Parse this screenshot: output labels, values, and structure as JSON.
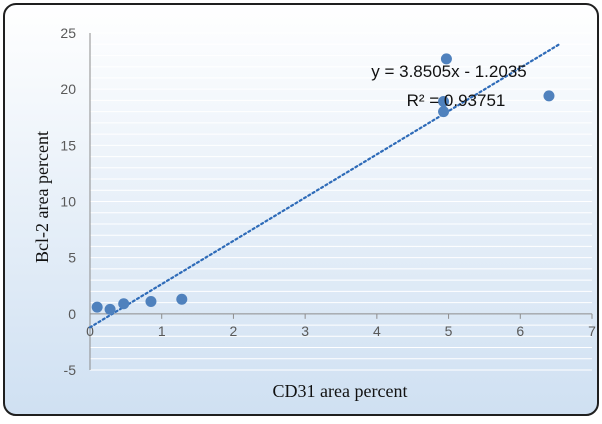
{
  "chart_data": {
    "type": "scatter",
    "xlabel": "CD31 area percent",
    "ylabel": "Bcl-2 area percent",
    "xlim": [
      0,
      7
    ],
    "ylim": [
      -5,
      25
    ],
    "x_ticks": [
      "0",
      "1",
      "2",
      "3",
      "4",
      "5",
      "6",
      "7"
    ],
    "y_ticks": [
      "-5",
      "0",
      "5",
      "10",
      "15",
      "20",
      "25"
    ],
    "grid": true,
    "points": [
      {
        "x": 0.1,
        "y": 0.6
      },
      {
        "x": 0.28,
        "y": 0.4
      },
      {
        "x": 0.47,
        "y": 0.9
      },
      {
        "x": 0.85,
        "y": 1.1
      },
      {
        "x": 1.28,
        "y": 1.3
      },
      {
        "x": 4.93,
        "y": 18.9
      },
      {
        "x": 4.93,
        "y": 18.0
      },
      {
        "x": 4.97,
        "y": 22.7
      },
      {
        "x": 6.4,
        "y": 19.4
      }
    ],
    "trendline": {
      "type": "linear",
      "slope": 3.8505,
      "intercept": -1.2035,
      "style": "dotted",
      "equation_label": "y = 3.8505x - 1.2035",
      "r2_label": "R² = 0.93751"
    },
    "colors": {
      "point": "#4f81bd",
      "trendline": "#2e6bb8",
      "background_top": "#ffffff",
      "background_bottom": "#cfe0f2",
      "border": "#1f1f1f",
      "gridline": "#ffffff"
    }
  }
}
